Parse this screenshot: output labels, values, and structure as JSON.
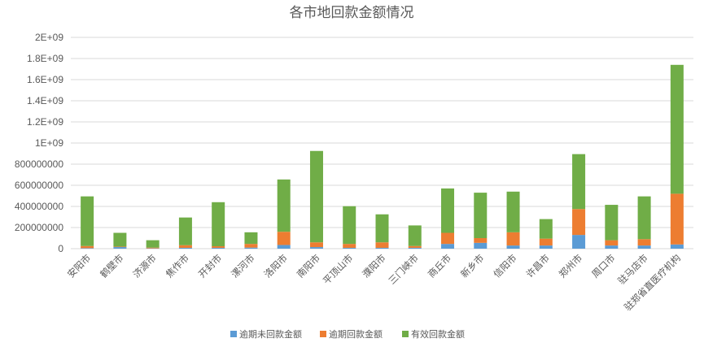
{
  "chart_data": {
    "type": "bar",
    "stacked": true,
    "title": "各市地回款金额情况",
    "xlabel": "",
    "ylabel": "",
    "ylim": [
      0,
      2000000000
    ],
    "yticks": [
      {
        "value": 0,
        "label": "0"
      },
      {
        "value": 200000000,
        "label": "200000000"
      },
      {
        "value": 400000000,
        "label": "400000000"
      },
      {
        "value": 600000000,
        "label": "600000000"
      },
      {
        "value": 800000000,
        "label": "800000000"
      },
      {
        "value": 1000000000,
        "label": "1E+09"
      },
      {
        "value": 1200000000,
        "label": "1.2E+09"
      },
      {
        "value": 1400000000,
        "label": "1.4E+09"
      },
      {
        "value": 1600000000,
        "label": "1.6E+09"
      },
      {
        "value": 1800000000,
        "label": "1.8E+09"
      },
      {
        "value": 2000000000,
        "label": "2E+09"
      }
    ],
    "grid": true,
    "legend_position": "bottom",
    "categories": [
      "安阳市",
      "鹤壁市",
      "济源市",
      "焦作市",
      "开封市",
      "漯河市",
      "洛阳市",
      "南阳市",
      "平顶山市",
      "濮阳市",
      "三门峡市",
      "商丘市",
      "新乡市",
      "信阳市",
      "许昌市",
      "郑州市",
      "周口市",
      "驻马店市",
      "驻郑省直医疗机构"
    ],
    "series": [
      {
        "name": "逾期未回款金额",
        "color": "#5b9bd5",
        "values": [
          5000000,
          15000000,
          3000000,
          8000000,
          8000000,
          10000000,
          35000000,
          15000000,
          8000000,
          8000000,
          8000000,
          45000000,
          55000000,
          30000000,
          30000000,
          130000000,
          30000000,
          30000000,
          40000000
        ]
      },
      {
        "name": "逾期回款金额",
        "color": "#ed7d31",
        "values": [
          20000000,
          5000000,
          7000000,
          25000000,
          15000000,
          35000000,
          125000000,
          45000000,
          37000000,
          52000000,
          17000000,
          105000000,
          45000000,
          125000000,
          65000000,
          245000000,
          50000000,
          60000000,
          480000000
        ]
      },
      {
        "name": "有效回款金额",
        "color": "#70ad47",
        "values": [
          470000000,
          130000000,
          70000000,
          262000000,
          417000000,
          110000000,
          495000000,
          865000000,
          357000000,
          265000000,
          195000000,
          420000000,
          430000000,
          385000000,
          185000000,
          520000000,
          335000000,
          405000000,
          1220000000
        ]
      }
    ]
  }
}
